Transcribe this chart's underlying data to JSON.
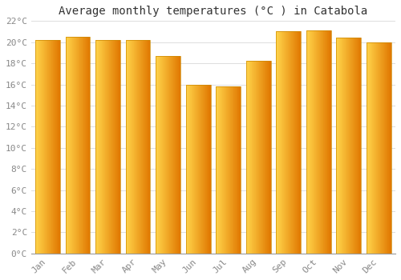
{
  "months": [
    "Jan",
    "Feb",
    "Mar",
    "Apr",
    "May",
    "Jun",
    "Jul",
    "Aug",
    "Sep",
    "Oct",
    "Nov",
    "Dec"
  ],
  "values": [
    20.2,
    20.5,
    20.2,
    20.2,
    18.7,
    16.0,
    15.8,
    18.2,
    21.0,
    21.1,
    20.4,
    20.0
  ],
  "bar_color_main": "#FFA500",
  "bar_color_light": "#FFD44A",
  "bar_color_dark": "#E07800",
  "bar_edge_color": "#CC8800",
  "title": "Average monthly temperatures (°C ) in Catabola",
  "ylim": [
    0,
    22
  ],
  "ytick_step": 2,
  "background_color": "#ffffff",
  "grid_color": "#dddddd",
  "title_fontsize": 10,
  "tick_fontsize": 8,
  "font_family": "monospace",
  "tick_color": "#888888",
  "figsize": [
    5.0,
    3.5
  ],
  "dpi": 100
}
